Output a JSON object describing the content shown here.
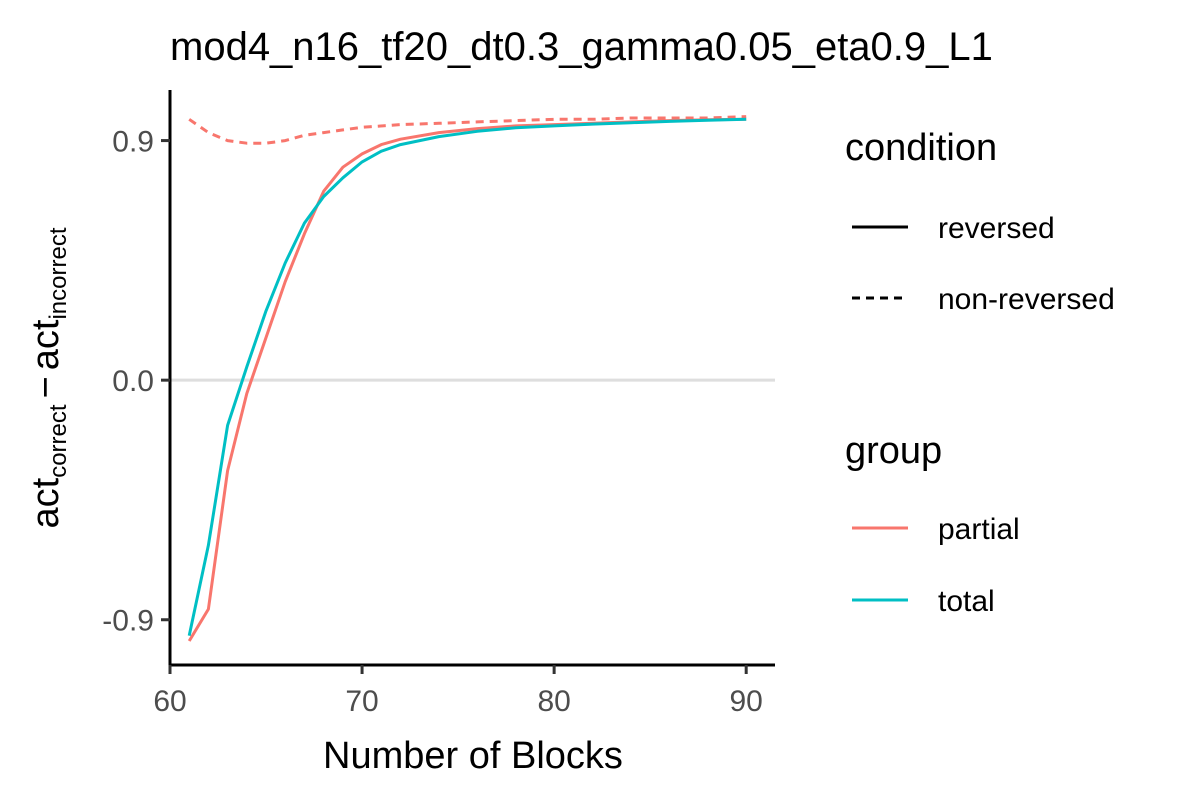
{
  "chart_data": {
    "type": "line",
    "title": "mod4_n16_tf20_dt0.3_gamma0.05_eta0.9_L1",
    "xlabel": "Number of Blocks",
    "ylabel": {
      "part1_main": "act",
      "part1_sub": "correct",
      "operator": "−",
      "part2_main": "act",
      "part2_sub": "incorrect"
    },
    "xlim": [
      60,
      91.5
    ],
    "ylim": [
      -1.07,
      1.09
    ],
    "x_ticks": [
      60,
      70,
      80,
      90
    ],
    "x_tick_labels": [
      "60",
      "70",
      "80",
      "90"
    ],
    "y_ticks": [
      -0.9,
      0.0,
      0.9
    ],
    "y_tick_labels": [
      "-0.9",
      "0.0",
      "0.9"
    ],
    "hline": 0.0,
    "grid": false,
    "legend_position": "right",
    "legends": [
      {
        "title": "condition",
        "entries": [
          {
            "label": "reversed",
            "linetype": "solid",
            "color": "#000000"
          },
          {
            "label": "non-reversed",
            "linetype": "dashed",
            "color": "#000000"
          }
        ]
      },
      {
        "title": "group",
        "entries": [
          {
            "label": "partial",
            "linetype": "solid",
            "color": "#F8766D"
          },
          {
            "label": "total",
            "linetype": "solid",
            "color": "#00BFC4"
          }
        ]
      }
    ],
    "series": [
      {
        "group": "partial",
        "condition": "non-reversed",
        "color": "#F8766D",
        "linetype": "dashed",
        "x": [
          61,
          62,
          63,
          64,
          65,
          66,
          67,
          68,
          69,
          70,
          72,
          74,
          76,
          78,
          80,
          82,
          84,
          86,
          88,
          90
        ],
        "y": [
          0.98,
          0.93,
          0.9,
          0.89,
          0.89,
          0.9,
          0.92,
          0.93,
          0.94,
          0.95,
          0.96,
          0.965,
          0.97,
          0.975,
          0.98,
          0.98,
          0.985,
          0.985,
          0.985,
          0.99
        ]
      },
      {
        "group": "partial",
        "condition": "reversed",
        "color": "#F8766D",
        "linetype": "solid",
        "x": [
          61,
          62,
          63,
          64,
          65,
          66,
          67,
          68,
          69,
          70,
          71,
          72,
          74,
          76,
          78,
          80,
          82,
          84,
          86,
          88,
          90
        ],
        "y": [
          -0.98,
          -0.86,
          -0.34,
          -0.05,
          0.16,
          0.37,
          0.55,
          0.71,
          0.8,
          0.85,
          0.885,
          0.905,
          0.93,
          0.945,
          0.955,
          0.96,
          0.965,
          0.97,
          0.975,
          0.978,
          0.98
        ]
      },
      {
        "group": "total",
        "condition": "reversed",
        "color": "#00BFC4",
        "linetype": "solid",
        "x": [
          61,
          62,
          63,
          64,
          65,
          66,
          67,
          68,
          69,
          70,
          71,
          72,
          74,
          76,
          78,
          80,
          82,
          84,
          86,
          88,
          90
        ],
        "y": [
          -0.96,
          -0.62,
          -0.17,
          0.05,
          0.26,
          0.44,
          0.59,
          0.69,
          0.76,
          0.82,
          0.86,
          0.885,
          0.915,
          0.935,
          0.948,
          0.955,
          0.962,
          0.967,
          0.972,
          0.976,
          0.98
        ]
      }
    ]
  }
}
